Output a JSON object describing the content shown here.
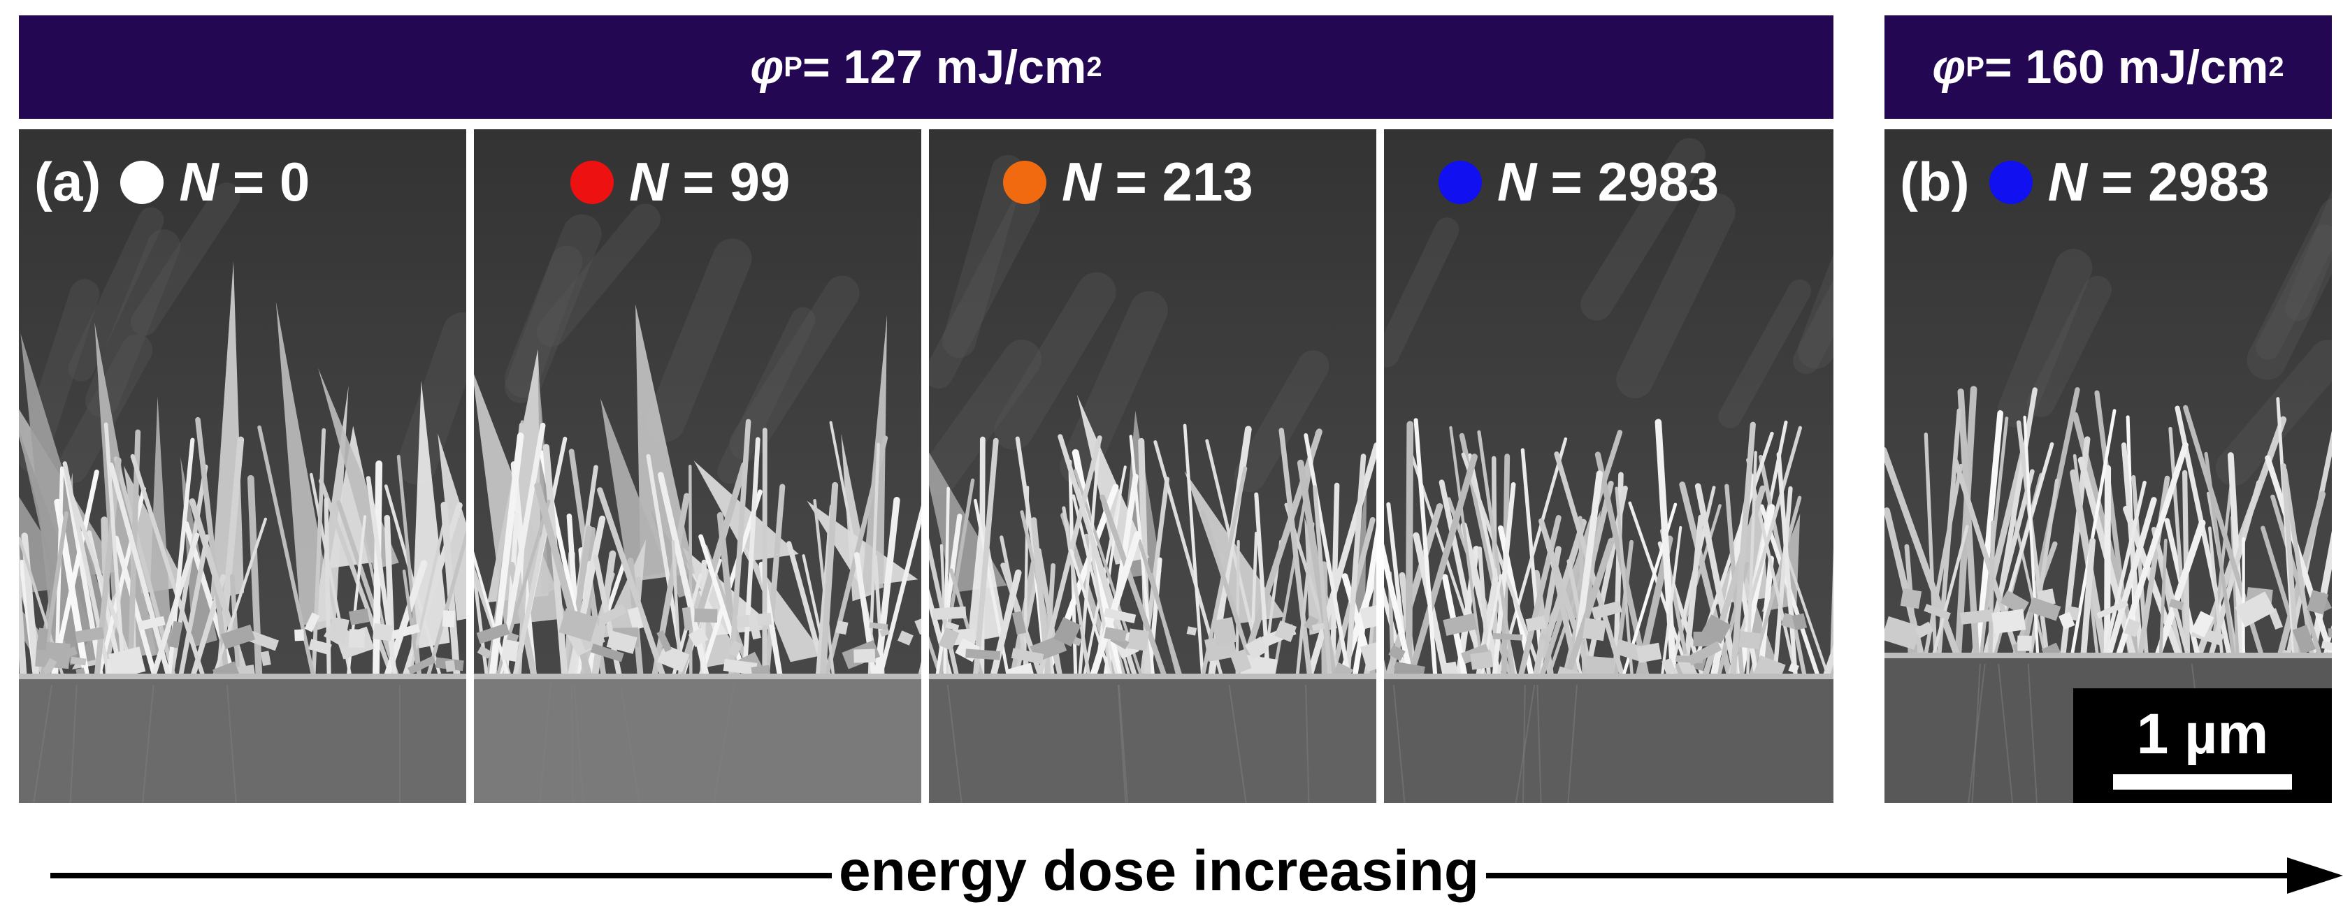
{
  "banners": [
    {
      "phi": "φ",
      "sub": "P",
      "text": " = 127 mJ/cm",
      "sup": "2"
    },
    {
      "phi": "φ",
      "sub": "P",
      "text": " = 160 mJ/cm",
      "sup": "2"
    }
  ],
  "panels": [
    {
      "letter": "(a)",
      "dot_color": "#ffffff",
      "n_var": "N",
      "n_text": "= 0"
    },
    {
      "letter": "",
      "dot_color": "#ee1111",
      "n_var": "N",
      "n_text": "= 99"
    },
    {
      "letter": "",
      "dot_color": "#f26a10",
      "n_var": "N",
      "n_text": "= 213"
    },
    {
      "letter": "",
      "dot_color": "#1010f0",
      "n_var": "N",
      "n_text": "= 2983"
    },
    {
      "letter": "(b)",
      "dot_color": "#1010f0",
      "n_var": "N",
      "n_text": "= 2983"
    }
  ],
  "scale_bar": {
    "text": "1 µm"
  },
  "arrow": {
    "text": "energy dose increasing"
  },
  "colors": {
    "banner": "#230753",
    "sem_background": "#3a3a3a",
    "nanowire": "#d9d9d9",
    "substrate": "#6e6e6e"
  },
  "panel_texture": [
    {
      "spikiness": 1.0,
      "wire_count": 55,
      "substrate_tone": "#6b6b6b"
    },
    {
      "spikiness": 0.75,
      "wire_count": 65,
      "substrate_tone": "#7a7a7a"
    },
    {
      "spikiness": 0.4,
      "wire_count": 80,
      "substrate_tone": "#626262"
    },
    {
      "spikiness": 0.2,
      "wire_count": 85,
      "substrate_tone": "#5d5d5d"
    },
    {
      "spikiness": 0.0,
      "wire_count": 70,
      "substrate_tone": "#585858"
    }
  ]
}
